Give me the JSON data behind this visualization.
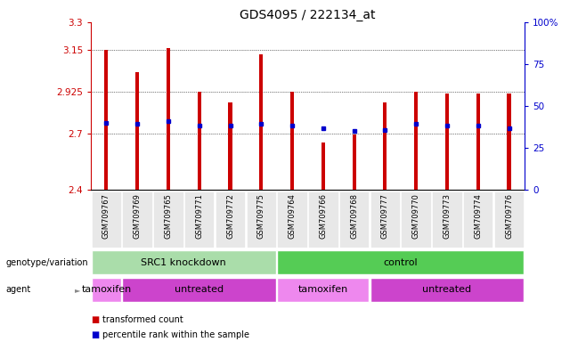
{
  "title": "GDS4095 / 222134_at",
  "samples": [
    "GSM709767",
    "GSM709769",
    "GSM709765",
    "GSM709771",
    "GSM709772",
    "GSM709775",
    "GSM709764",
    "GSM709766",
    "GSM709768",
    "GSM709777",
    "GSM709770",
    "GSM709773",
    "GSM709774",
    "GSM709776"
  ],
  "bar_values": [
    3.15,
    3.03,
    3.16,
    2.925,
    2.87,
    3.13,
    2.925,
    2.655,
    2.695,
    2.87,
    2.925,
    2.915,
    2.915,
    2.915
  ],
  "percentile_values": [
    2.76,
    2.755,
    2.77,
    2.745,
    2.745,
    2.755,
    2.745,
    2.73,
    2.715,
    2.72,
    2.755,
    2.745,
    2.745,
    2.73
  ],
  "ylim_left": [
    2.4,
    3.3
  ],
  "yticks_left": [
    2.4,
    2.7,
    2.925,
    3.15,
    3.3
  ],
  "ytick_labels_left": [
    "2.4",
    "2.7",
    "2.925",
    "3.15",
    "3.3"
  ],
  "ylim_right": [
    0,
    100
  ],
  "yticks_right": [
    0,
    25,
    50,
    75,
    100
  ],
  "ytick_labels_right": [
    "0",
    "25",
    "50",
    "75",
    "100%"
  ],
  "bar_color": "#cc0000",
  "percentile_color": "#0000cc",
  "background_color": "#ffffff",
  "genotype_groups": [
    {
      "label": "SRC1 knockdown",
      "start": 0,
      "end": 6,
      "color": "#aaddaa"
    },
    {
      "label": "control",
      "start": 6,
      "end": 14,
      "color": "#55cc55"
    }
  ],
  "agent_groups": [
    {
      "label": "tamoxifen",
      "start": 0,
      "end": 1,
      "color": "#ee88ee"
    },
    {
      "label": "untreated",
      "start": 1,
      "end": 6,
      "color": "#cc44cc"
    },
    {
      "label": "tamoxifen",
      "start": 6,
      "end": 9,
      "color": "#ee88ee"
    },
    {
      "label": "untreated",
      "start": 9,
      "end": 14,
      "color": "#cc44cc"
    }
  ],
  "legend_items": [
    {
      "label": "transformed count",
      "color": "#cc0000"
    },
    {
      "label": "percentile rank within the sample",
      "color": "#0000cc"
    }
  ],
  "ylabel_left_color": "#cc0000",
  "ylabel_right_color": "#0000cc",
  "title_fontsize": 10,
  "tick_fontsize": 7.5,
  "bar_width": 0.12
}
